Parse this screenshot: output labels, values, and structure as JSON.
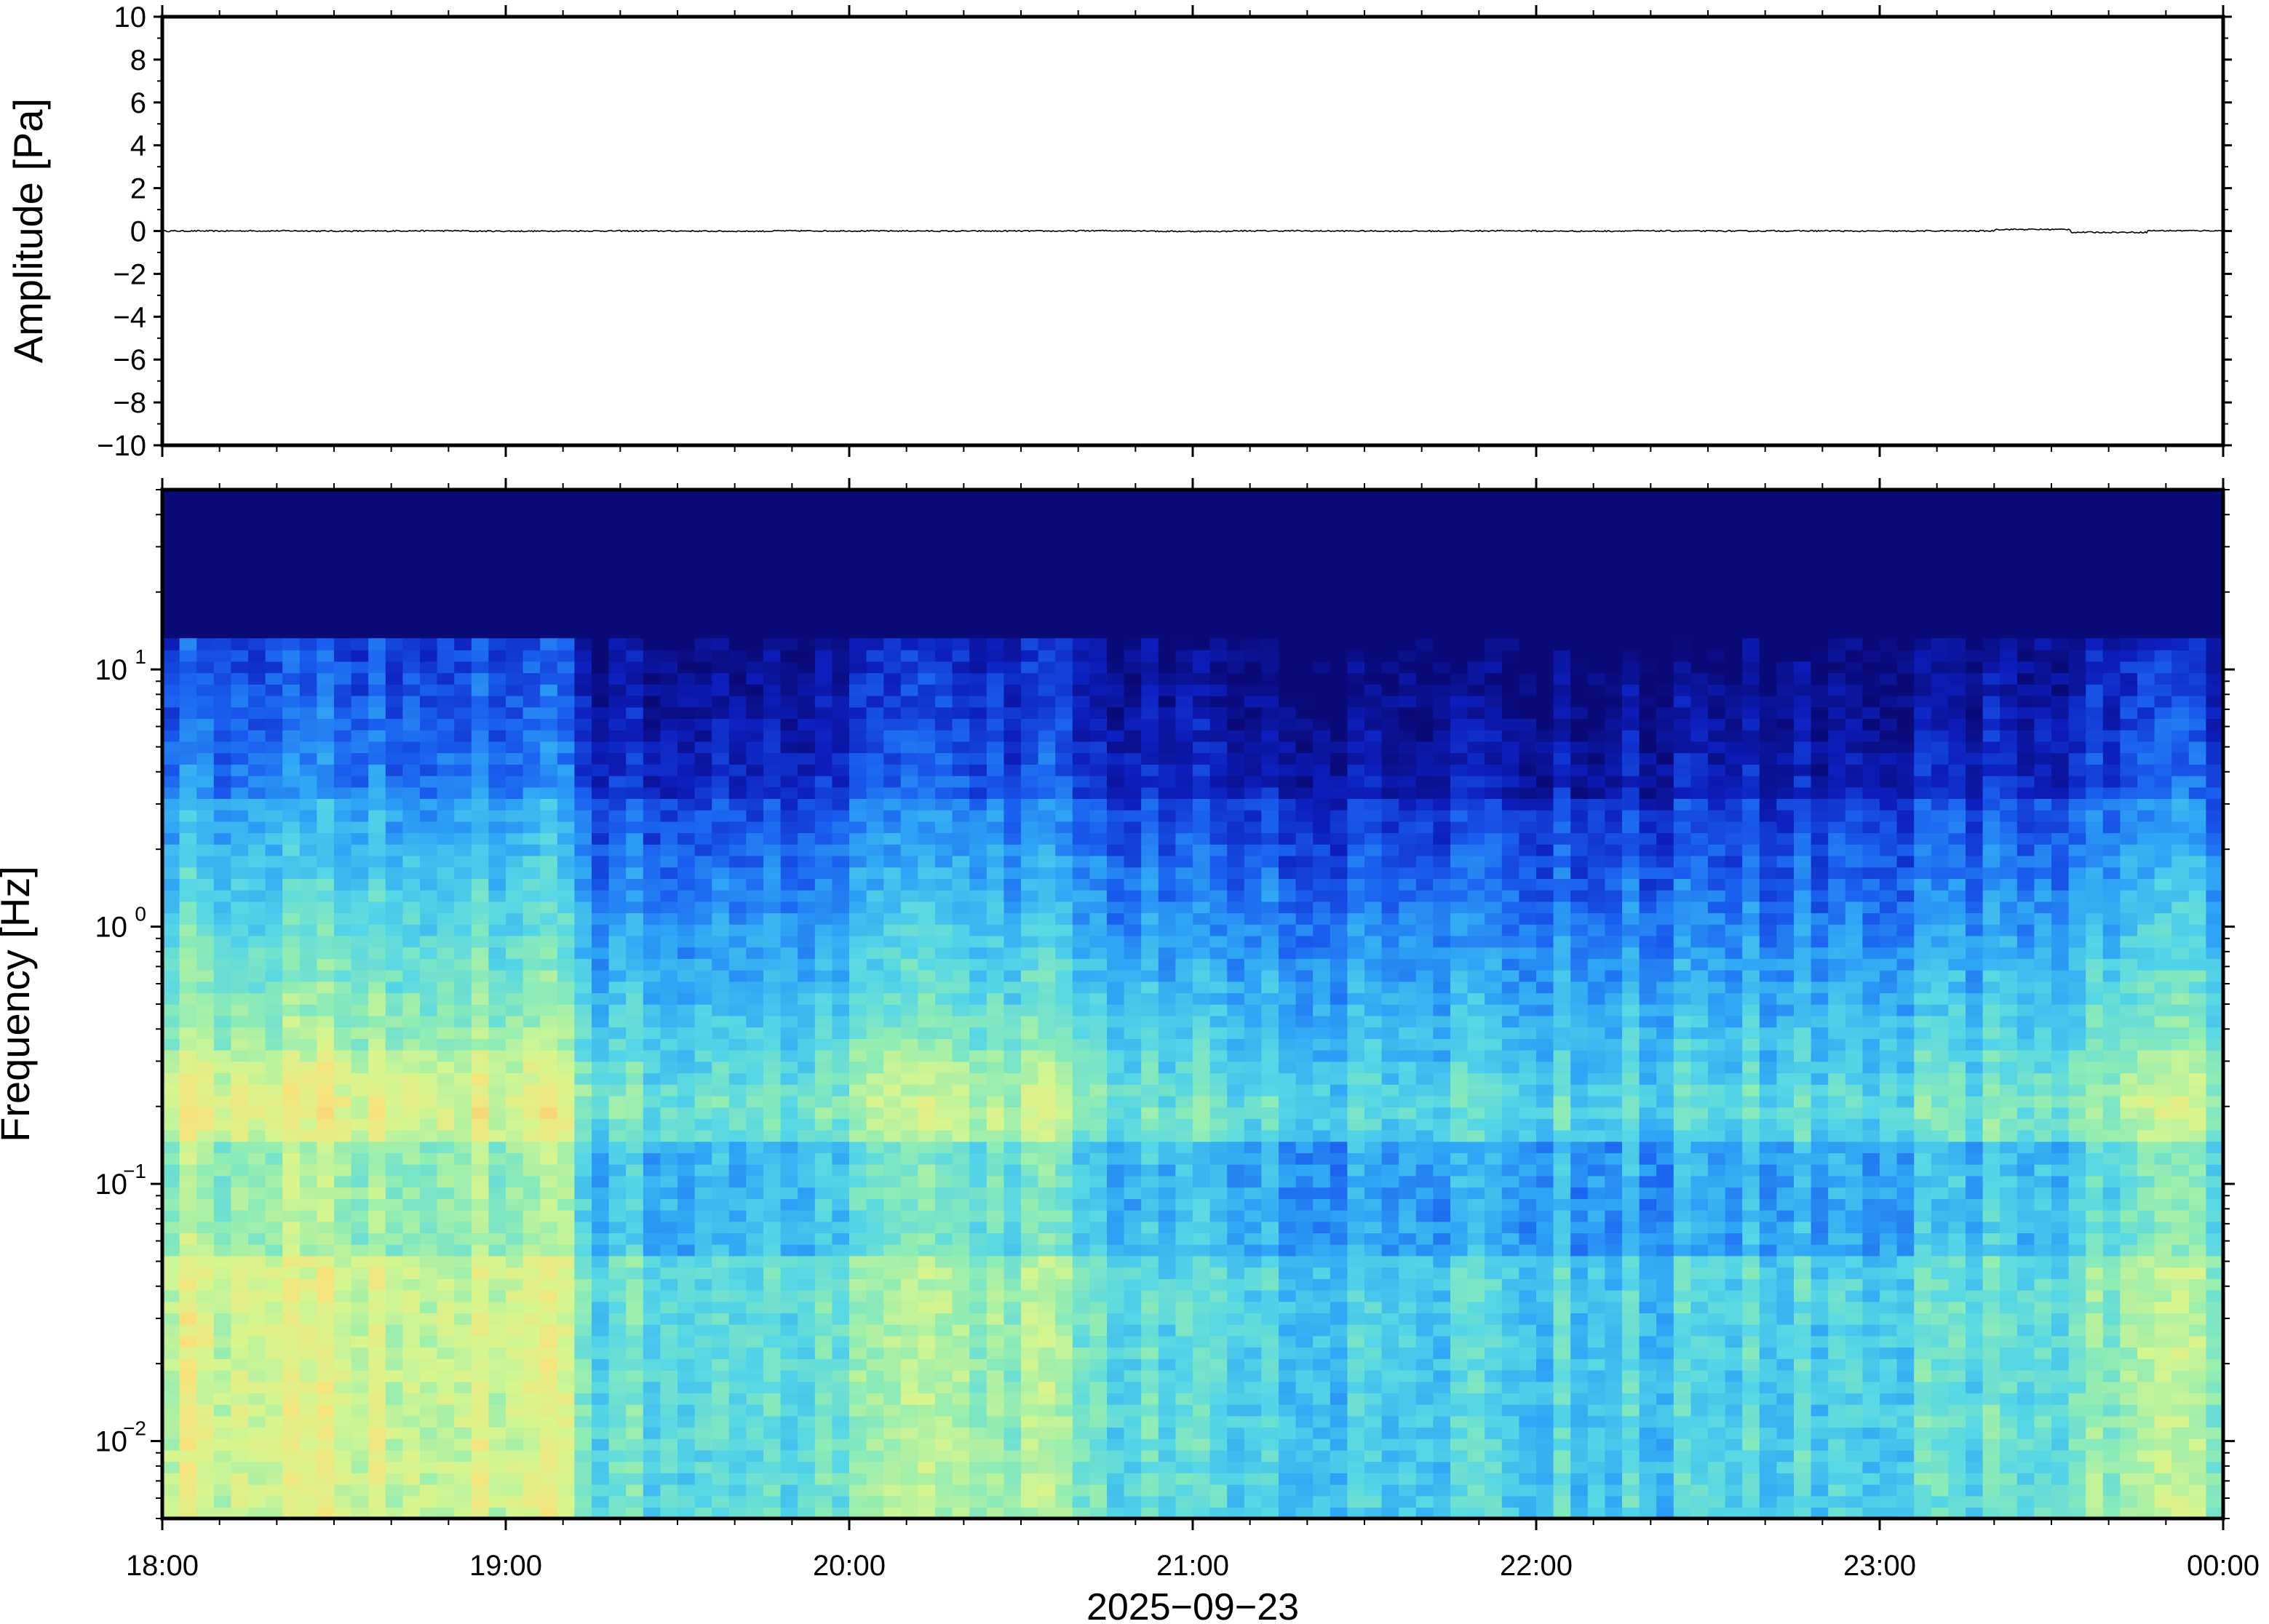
{
  "chart_data": [
    {
      "type": "line",
      "panel": "waveform",
      "title": "",
      "ylabel": "Amplitude [Pa]",
      "xlabel": "",
      "ylim": [
        -10,
        10
      ],
      "y_ticks": [
        "10",
        "8",
        "6",
        "4",
        "2",
        "0",
        "−2",
        "−4",
        "−6",
        "−8",
        "−10"
      ],
      "y_tick_values": [
        10,
        8,
        6,
        4,
        2,
        0,
        -2,
        -4,
        -6,
        -8,
        -10
      ],
      "x_range_hours": [
        18,
        24
      ],
      "series": [
        {
          "values": [
            0.0,
            0.02,
            -0.01,
            0.03,
            -0.02,
            0.01,
            0.0,
            -0.03,
            0.02,
            0.01,
            -0.01,
            0.0,
            0.04,
            -0.05,
            0.02,
            0.0,
            -0.01,
            0.03,
            -0.02,
            0.01,
            0.0,
            0.02,
            -0.02,
            0.01,
            0.25,
            -0.2,
            0.05,
            0.0
          ],
          "color": "#000000"
        }
      ],
      "grid": false
    },
    {
      "type": "heatmap",
      "panel": "spectrogram",
      "title": "",
      "ylabel": "Frequency [Hz]",
      "xlabel": "2025−09−23",
      "y_scale": "log",
      "ylim_hz": [
        0.005,
        50
      ],
      "y_ticks": [
        {
          "base": "10",
          "exp": "1",
          "value": 10
        },
        {
          "base": "10",
          "exp": "0",
          "value": 1
        },
        {
          "base": "10",
          "exp": "−1",
          "value": 0.1
        },
        {
          "base": "10",
          "exp": "−2",
          "value": 0.01
        }
      ],
      "x_ticks": [
        "18:00",
        "19:00",
        "20:00",
        "21:00",
        "22:00",
        "23:00",
        "00:00"
      ],
      "x_tick_hours": [
        18,
        19,
        20,
        21,
        22,
        23,
        24
      ],
      "colormap": [
        "#0a0a78",
        "#0d1fbf",
        "#1a5ff0",
        "#2fa6f5",
        "#55d6e6",
        "#8fecb4",
        "#d6f58e",
        "#f7e27a",
        "#f7b66a"
      ],
      "grid": false
    }
  ]
}
